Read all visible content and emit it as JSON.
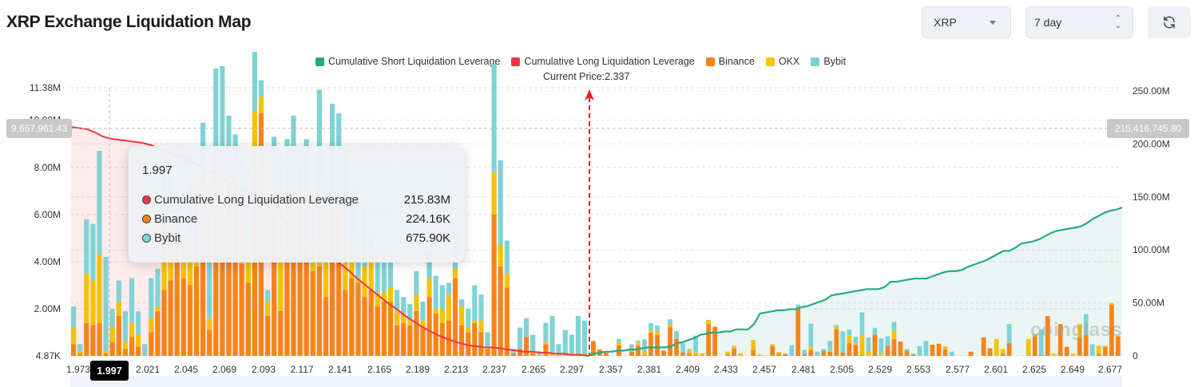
{
  "header": {
    "title": "XRP Exchange Liquidation Map",
    "coin_select": {
      "value": "XRP",
      "icon": "caret-down-icon"
    },
    "range_select": {
      "value": "7 day",
      "icon": "updown-icon"
    },
    "refresh_button": {
      "icon": "refresh-icon"
    }
  },
  "colors": {
    "short_cum": "#26a98a",
    "long_cum": "#f23645",
    "binance": "#f7841a",
    "okx": "#f5c20a",
    "bybit": "#7fd3d6"
  },
  "watermark": "coinglass",
  "tooltip": {
    "title": "1.997",
    "rows": [
      {
        "label": "Cumulative Long Liquidation Leverage",
        "value": "215.83M",
        "color": "#f23645"
      },
      {
        "label": "Binance",
        "value": "224.16K",
        "color": "#f7841a"
      },
      {
        "label": "Bybit",
        "value": "675.90K",
        "color": "#7fd3d6"
      }
    ]
  },
  "crosshair": {
    "x_label": "1.997",
    "left_value": "9,657,961.43",
    "right_value": "215,416,745.80"
  },
  "chart_data": {
    "type": "bar",
    "title": "XRP Exchange Liquidation Map",
    "current_price_label": "Current Price:2.337",
    "current_price": 2.337,
    "legend": [
      {
        "name": "Cumulative Short Liquidation Leverage",
        "color": "#26a98a"
      },
      {
        "name": "Cumulative Long Liquidation Leverage",
        "color": "#f23645"
      },
      {
        "name": "Binance",
        "color": "#f7841a"
      },
      {
        "name": "OKX",
        "color": "#f5c20a"
      },
      {
        "name": "Bybit",
        "color": "#7fd3d6"
      }
    ],
    "legend_position": "top-center",
    "grid": true,
    "left_axis": {
      "ticks": [
        "4.87K",
        "2.00M",
        "4.00M",
        "6.00M",
        "8.00M",
        "10.00M",
        "11.38M"
      ],
      "tick_values": [
        0.00487,
        2,
        4,
        6,
        8,
        10,
        11.38
      ],
      "range": [
        0,
        11.38
      ],
      "unit": "M"
    },
    "right_axis": {
      "ticks": [
        "0",
        "50.00M",
        "100.00M",
        "150.00M",
        "200.00M",
        "250.00M"
      ],
      "tick_values": [
        0,
        50,
        100,
        150,
        200,
        250
      ],
      "range": [
        0,
        250
      ],
      "unit": "M"
    },
    "x_tick_labels": [
      "1.973",
      "1.997",
      "2.021",
      "2.045",
      "2.069",
      "2.093",
      "2.117",
      "2.141",
      "2.165",
      "2.189",
      "2.213",
      "2.237",
      "2.265",
      "2.297",
      "2.357",
      "2.381",
      "2.409",
      "2.433",
      "2.457",
      "2.481",
      "2.505",
      "2.529",
      "2.553",
      "2.577",
      "2.601",
      "2.625",
      "2.649",
      "2.677"
    ],
    "x_range": [
      1.973,
      2.69
    ],
    "bars_M": {
      "binance": [
        0.5,
        0.1,
        1.4,
        1.3,
        1.4,
        0.1,
        0.6,
        1.7,
        0.3,
        0.8,
        0.4,
        0,
        1.0,
        1.9,
        2.8,
        3.2,
        4.5,
        3.3,
        3.0,
        3.8,
        5.0,
        1.1,
        6.0,
        6.0,
        7.3,
        5.8,
        3.9,
        3.1,
        7.8,
        10.3,
        1.7,
        6.5,
        1.9,
        5.8,
        4.2,
        4.9,
        6.4,
        3.6,
        3.8,
        2.5,
        5.1,
        6.1,
        2.8,
        3.3,
        3.1,
        2.5,
        2.8,
        2.1,
        2.3,
        2.3,
        1.3,
        1.4,
        1.3,
        1.9,
        1.2,
        2.5,
        1.8,
        1.4,
        1.5,
        3.3,
        1.3,
        1.0,
        1.4,
        1.0,
        0.3,
        6.0,
        3.8,
        2.9,
        0.1,
        0.3,
        0.8,
        0.1,
        0.0,
        0.5,
        0.0,
        0.0,
        0.0,
        0.0,
        0.0,
        0.0
      ],
      "okx": [
        0.7,
        0.1,
        2.1,
        1.9,
        2.9,
        0.1,
        0.6,
        0.6,
        0.3,
        0.6,
        0.5,
        0,
        0.6,
        0.2,
        3.0,
        2.4,
        0.2,
        1.0,
        2.0,
        0.4,
        2.6,
        0.5,
        2.0,
        2.0,
        0.4,
        2.0,
        1.7,
        1.5,
        2.6,
        0.7,
        0.6,
        0.5,
        4.3,
        1.5,
        3.2,
        1.8,
        0.7,
        1.3,
        3.6,
        2.6,
        0.9,
        0.5,
        1.9,
        1.4,
        0.2,
        1.3,
        1.4,
        0.6,
        0.4,
        0.6,
        0.6,
        0.4,
        0.2,
        0.7,
        0.3,
        0.8,
        0.2,
        0.6,
        1.1,
        0.4,
        0.8,
        0.2,
        0.1,
        0.5,
        0.1,
        1.8,
        0.9,
        0.6,
        0,
        0,
        0,
        0.1,
        0,
        0.1,
        0.1,
        0.1,
        0.1,
        0.1,
        0.1,
        0.1
      ],
      "bybit": [
        0.9,
        0.3,
        2.3,
        2.4,
        4.4,
        4.0,
        0.8,
        0.9,
        1.3,
        1.9,
        1.0,
        0.5,
        1.7,
        1.6,
        1.7,
        2.7,
        1.9,
        0.8,
        2.3,
        2.2,
        2.3,
        5.7,
        4.2,
        4.3,
        2.5,
        1.6,
        2.7,
        3.5,
        2.5,
        0.7,
        0.5,
        2.3,
        2.5,
        1.9,
        2.8,
        1.3,
        2.1,
        2.0,
        3.9,
        2.4,
        4.7,
        3.7,
        4.1,
        2.3,
        2.0,
        2.6,
        0.8,
        1.8,
        1.6,
        1.2,
        0.9,
        0.7,
        0.7,
        1.0,
        0.8,
        1.1,
        1.4,
        1.0,
        0.5,
        1.6,
        0.3,
        0.8,
        1.5,
        1.1,
        0.6,
        4.6,
        3.6,
        1.4,
        0.2,
        0.9,
        0.8,
        0.7,
        0.2,
        0.8,
        1.6,
        0.4,
        1.0,
        0.8,
        1.6,
        1.4
      ]
    },
    "bars_right_M": {
      "binance": [
        28,
        12,
        6,
        0,
        20,
        0,
        8,
        19,
        2,
        44,
        40,
        10,
        54,
        32,
        6,
        5,
        2,
        0,
        60,
        55,
        0,
        2,
        14,
        0,
        0,
        11,
        0,
        0,
        18,
        4,
        4,
        0,
        89,
        3,
        11,
        0,
        9,
        8,
        50,
        6,
        24,
        21,
        2,
        0,
        40,
        0,
        19,
        32,
        27,
        10,
        2,
        0,
        0,
        21,
        23,
        12,
        0,
        0,
        0,
        8,
        0,
        35,
        14,
        0,
        4,
        24,
        0,
        0,
        1,
        37,
        2,
        75,
        0,
        60,
        17,
        0,
        34,
        39,
        0,
        4,
        17,
        96,
        36
      ],
      "okx": [
        0,
        0,
        0,
        0,
        6,
        0,
        2,
        6,
        8,
        4,
        7,
        0,
        5,
        0,
        0,
        6,
        5,
        5,
        8,
        0,
        0,
        6,
        5,
        5,
        0,
        19,
        3,
        1,
        4,
        3,
        0,
        0,
        0,
        0,
        5,
        0,
        0,
        2,
        5,
        0,
        14,
        2,
        37,
        9,
        0,
        4,
        0,
        16,
        0,
        0,
        0,
        0,
        0,
        0,
        0,
        6,
        0,
        0,
        0,
        0,
        0,
        0,
        0,
        32,
        9,
        0,
        0,
        0,
        31,
        4,
        0,
        0,
        4,
        0,
        0,
        4,
        26,
        0,
        0,
        15,
        2,
        4,
        2,
        19
      ],
      "bybit": [
        0,
        0,
        0,
        0,
        6,
        0,
        12,
        4,
        21,
        14,
        10,
        0,
        10,
        15,
        18,
        2,
        31,
        0,
        0,
        0,
        0,
        0,
        0,
        0,
        0,
        0,
        0,
        0,
        0,
        0,
        0,
        20,
        8,
        8,
        45,
        8,
        4,
        18,
        3,
        40,
        12,
        13,
        43,
        26,
        13,
        29,
        18,
        16,
        0,
        3,
        2,
        18,
        28,
        0,
        0,
        0,
        8,
        0,
        0,
        0,
        0,
        0,
        0,
        0,
        0,
        36,
        0,
        0,
        0,
        0,
        48,
        0,
        0,
        0,
        0,
        0,
        0,
        40,
        22,
        0,
        0,
        0,
        0,
        0
      ]
    },
    "cumulative_long_M": [
      216,
      215,
      214,
      211,
      207,
      205,
      204,
      203,
      202,
      201,
      199,
      196,
      193,
      190,
      187,
      184,
      180,
      176,
      172,
      168,
      164,
      160,
      156,
      151,
      146,
      140,
      134,
      128,
      122,
      116,
      110,
      104,
      98,
      92,
      86,
      80,
      73,
      67,
      61,
      55,
      49,
      44,
      38,
      33,
      28,
      24,
      20,
      17,
      14,
      12,
      10,
      9,
      8,
      8,
      7,
      6,
      5,
      4,
      4,
      3,
      3,
      2,
      2,
      1,
      1,
      0
    ],
    "cumulative_short_M": [
      0,
      2,
      3,
      4,
      4,
      5,
      5,
      6,
      6,
      7,
      8,
      8,
      8,
      8,
      9,
      12,
      13,
      15,
      17,
      20,
      21,
      22,
      22,
      23,
      23,
      25,
      25,
      25,
      30,
      40,
      41,
      42,
      43,
      43,
      44,
      44,
      46,
      47,
      49,
      51,
      53,
      57,
      58,
      59,
      60,
      61,
      62,
      63,
      63,
      63,
      65,
      70,
      70,
      71,
      72,
      73,
      73,
      73,
      75,
      77,
      79,
      80,
      80,
      81,
      84,
      86,
      88,
      90,
      93,
      96,
      99,
      99,
      102,
      106,
      107,
      108,
      110,
      113,
      116,
      118,
      119,
      120,
      121,
      122,
      125,
      129,
      132,
      135,
      137,
      138,
      140
    ]
  }
}
